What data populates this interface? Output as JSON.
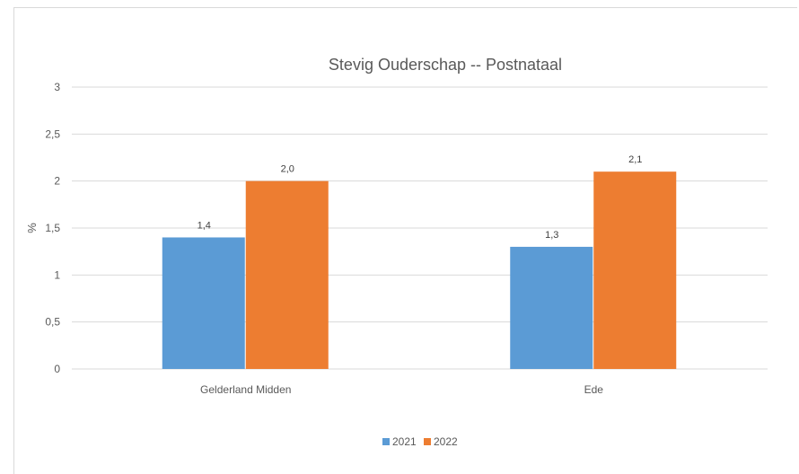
{
  "chart_data": {
    "type": "bar",
    "title": "Stevig Ouderschap  -- Postnataal",
    "xlabel": "",
    "ylabel": "%",
    "categories": [
      "Gelderland Midden",
      "Ede"
    ],
    "series": [
      {
        "name": "2021",
        "values": [
          1.4,
          1.3
        ],
        "labels": [
          "1,4",
          "1,3"
        ],
        "color": "#5b9bd5"
      },
      {
        "name": "2022",
        "values": [
          2.0,
          2.1
        ],
        "labels": [
          "2,0",
          "2,1"
        ],
        "color": "#ed7d31"
      }
    ],
    "ylim": [
      0,
      3
    ],
    "yticks": [
      0,
      0.5,
      1,
      1.5,
      2,
      2.5,
      3
    ],
    "ytick_labels": [
      "0",
      "0,5",
      "1",
      "1,5",
      "2",
      "2,5",
      "3"
    ],
    "grid": true,
    "legend_position": "bottom",
    "gridline_color": "#d9d9d9"
  }
}
